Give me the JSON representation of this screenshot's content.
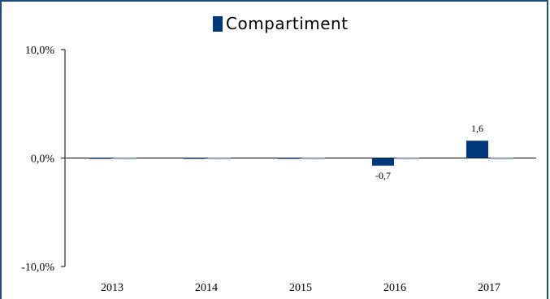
{
  "chart_data": {
    "type": "bar",
    "categories": [
      "2013",
      "2014",
      "2015",
      "2016",
      "2017"
    ],
    "series": [
      {
        "name": "Compartiment",
        "color": "#003a7d",
        "values": [
          0,
          0,
          0,
          -0.7,
          1.6
        ],
        "data_labels": [
          "",
          "",
          "",
          "-0,7",
          "1,6"
        ]
      }
    ],
    "y_ticks": [
      "10,0%",
      "0,0%",
      "-10,0%"
    ],
    "y_tick_values": [
      10,
      0,
      -10
    ],
    "ylim": [
      -10,
      10
    ],
    "grid": false,
    "legend_position": "top"
  }
}
